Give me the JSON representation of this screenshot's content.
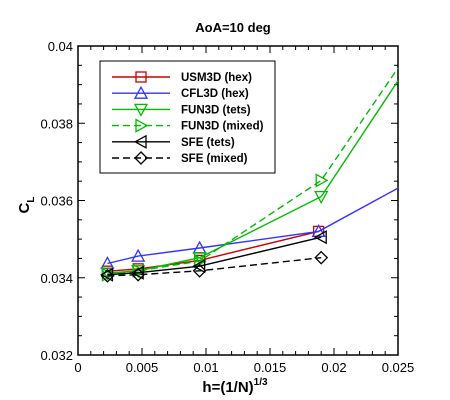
{
  "chart_data": {
    "type": "line",
    "title": "AoA=10 deg",
    "xlabel": "h=(1/N)",
    "xlabel_sup": "1/3",
    "ylabel": "C",
    "ylabel_sub": "L",
    "xlim": [
      0,
      0.025
    ],
    "ylim": [
      0.032,
      0.04
    ],
    "xticks": [
      0,
      0.005,
      0.01,
      0.015,
      0.02,
      0.025
    ],
    "xtick_labels": [
      "0",
      "0.005",
      "0.01",
      "0.015",
      "0.02",
      "0.025"
    ],
    "yticks": [
      0.032,
      0.034,
      0.036,
      0.038,
      0.04
    ],
    "ytick_labels": [
      "0.032",
      "0.034",
      "0.036",
      "0.038",
      "0.04"
    ],
    "grid": false,
    "legend_position": "upper-left",
    "series": [
      {
        "name": "USM3D (hex)",
        "color": "#cc0000",
        "dash": "solid",
        "marker": "square",
        "x": [
          0.0023,
          0.0047,
          0.0095,
          0.0188
        ],
        "y": [
          0.03417,
          0.03423,
          0.03445,
          0.0352
        ]
      },
      {
        "name": "CFL3D (hex)",
        "color": "#3333ff",
        "dash": "solid",
        "marker": "triangle-up",
        "x": [
          0.0023,
          0.0047,
          0.0095,
          0.0188,
          0.025
        ],
        "y": [
          0.03437,
          0.03456,
          0.03477,
          0.0352,
          0.03632
        ]
      },
      {
        "name": "FUN3D (tets)",
        "color": "#00bb00",
        "dash": "solid",
        "marker": "triangle-down",
        "x": [
          0.0023,
          0.0047,
          0.0095,
          0.019,
          0.025
        ],
        "y": [
          0.03412,
          0.03418,
          0.03452,
          0.0361,
          0.0391
        ]
      },
      {
        "name": "FUN3D (mixed)",
        "color": "#00bb00",
        "dash": "dashed",
        "marker": "triangle-right",
        "x": [
          0.0023,
          0.0047,
          0.0095,
          0.019,
          0.025
        ],
        "y": [
          0.03408,
          0.03418,
          0.03443,
          0.03652,
          0.03943
        ]
      },
      {
        "name": "SFE (tets)",
        "color": "#000000",
        "dash": "solid",
        "marker": "triangle-left",
        "x": [
          0.0023,
          0.0047,
          0.0095,
          0.019
        ],
        "y": [
          0.03408,
          0.03413,
          0.0343,
          0.03505
        ]
      },
      {
        "name": "SFE (mixed)",
        "color": "#000000",
        "dash": "dashed",
        "marker": "diamond",
        "x": [
          0.0023,
          0.0047,
          0.0095,
          0.019
        ],
        "y": [
          0.03405,
          0.03408,
          0.03418,
          0.03452
        ]
      }
    ]
  }
}
